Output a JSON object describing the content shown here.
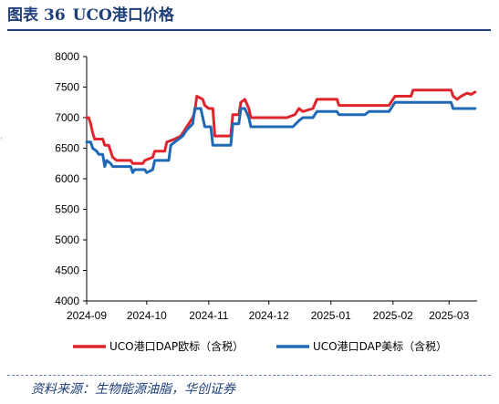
{
  "title": {
    "prefix": "图表",
    "number": "36",
    "text": "UCO港口价格"
  },
  "left_mark": "‘",
  "source": "资料来源：生物能源油脂，华创证券",
  "chart_data": {
    "type": "line",
    "ylim": [
      4000,
      8000
    ],
    "yticks": [
      4000,
      4500,
      5000,
      5500,
      6000,
      6500,
      7000,
      7500,
      8000
    ],
    "xlim": [
      "2024-09-01",
      "2025-03-15"
    ],
    "xticks": [
      "2024-09",
      "2024-10",
      "2024-11",
      "2024-12",
      "2025-01",
      "2025-02",
      "2025-03"
    ],
    "legend_position": "bottom",
    "series": [
      {
        "name": "UCO港口DAP欧标（含税）",
        "color": "#e0242c",
        "points": [
          [
            "2024-09-01",
            7000
          ],
          [
            "2024-09-02",
            7000
          ],
          [
            "2024-09-03",
            6900
          ],
          [
            "2024-09-04",
            6750
          ],
          [
            "2024-09-05",
            6650
          ],
          [
            "2024-09-09",
            6650
          ],
          [
            "2024-09-10",
            6550
          ],
          [
            "2024-09-12",
            6550
          ],
          [
            "2024-09-13",
            6450
          ],
          [
            "2024-09-14",
            6350
          ],
          [
            "2024-09-16",
            6300
          ],
          [
            "2024-09-23",
            6300
          ],
          [
            "2024-09-24",
            6250
          ],
          [
            "2024-09-29",
            6250
          ],
          [
            "2024-09-30",
            6300
          ],
          [
            "2024-10-04",
            6350
          ],
          [
            "2024-10-05",
            6450
          ],
          [
            "2024-10-10",
            6450
          ],
          [
            "2024-10-11",
            6600
          ],
          [
            "2024-10-15",
            6650
          ],
          [
            "2024-10-18",
            6700
          ],
          [
            "2024-10-21",
            6850
          ],
          [
            "2024-10-24",
            7000
          ],
          [
            "2024-10-25",
            7100
          ],
          [
            "2024-10-26",
            7350
          ],
          [
            "2024-10-29",
            7300
          ],
          [
            "2024-10-30",
            7200
          ],
          [
            "2024-11-01",
            7150
          ],
          [
            "2024-11-03",
            7150
          ],
          [
            "2024-11-04",
            6700
          ],
          [
            "2024-11-12",
            6700
          ],
          [
            "2024-11-13",
            7050
          ],
          [
            "2024-11-16",
            7050
          ],
          [
            "2024-11-17",
            7250
          ],
          [
            "2024-11-19",
            7300
          ],
          [
            "2024-11-21",
            7150
          ],
          [
            "2024-11-22",
            7000
          ],
          [
            "2024-12-10",
            7000
          ],
          [
            "2024-12-14",
            7050
          ],
          [
            "2024-12-16",
            7150
          ],
          [
            "2024-12-18",
            7100
          ],
          [
            "2024-12-23",
            7150
          ],
          [
            "2024-12-25",
            7300
          ],
          [
            "2025-01-04",
            7300
          ],
          [
            "2025-01-05",
            7200
          ],
          [
            "2025-01-30",
            7200
          ],
          [
            "2025-02-02",
            7350
          ],
          [
            "2025-02-10",
            7350
          ],
          [
            "2025-02-11",
            7450
          ],
          [
            "2025-03-02",
            7450
          ],
          [
            "2025-03-03",
            7350
          ],
          [
            "2025-03-05",
            7300
          ],
          [
            "2025-03-07",
            7350
          ],
          [
            "2025-03-10",
            7400
          ],
          [
            "2025-03-12",
            7380
          ],
          [
            "2025-03-14",
            7420
          ]
        ]
      },
      {
        "name": "UCO港口DAP美标（含税）",
        "color": "#1f68b5",
        "points": [
          [
            "2024-09-01",
            6600
          ],
          [
            "2024-09-03",
            6600
          ],
          [
            "2024-09-04",
            6500
          ],
          [
            "2024-09-06",
            6450
          ],
          [
            "2024-09-07",
            6400
          ],
          [
            "2024-09-09",
            6400
          ],
          [
            "2024-09-10",
            6200
          ],
          [
            "2024-09-11",
            6300
          ],
          [
            "2024-09-13",
            6250
          ],
          [
            "2024-09-14",
            6200
          ],
          [
            "2024-09-23",
            6200
          ],
          [
            "2024-09-24",
            6100
          ],
          [
            "2024-09-25",
            6150
          ],
          [
            "2024-09-30",
            6150
          ],
          [
            "2024-10-01",
            6100
          ],
          [
            "2024-10-04",
            6150
          ],
          [
            "2024-10-05",
            6300
          ],
          [
            "2024-10-12",
            6300
          ],
          [
            "2024-10-13",
            6550
          ],
          [
            "2024-10-15",
            6600
          ],
          [
            "2024-10-19",
            6700
          ],
          [
            "2024-10-21",
            6800
          ],
          [
            "2024-10-24",
            6900
          ],
          [
            "2024-10-25",
            7150
          ],
          [
            "2024-10-28",
            7150
          ],
          [
            "2024-10-29",
            7000
          ],
          [
            "2024-10-30",
            6850
          ],
          [
            "2024-11-01",
            6850
          ],
          [
            "2024-11-02",
            6850
          ],
          [
            "2024-11-03",
            6550
          ],
          [
            "2024-11-12",
            6550
          ],
          [
            "2024-11-13",
            6900
          ],
          [
            "2024-11-16",
            6900
          ],
          [
            "2024-11-17",
            7150
          ],
          [
            "2024-11-19",
            7150
          ],
          [
            "2024-11-21",
            7000
          ],
          [
            "2024-11-22",
            6850
          ],
          [
            "2024-12-13",
            6850
          ],
          [
            "2024-12-16",
            6950
          ],
          [
            "2024-12-18",
            7000
          ],
          [
            "2024-12-23",
            7000
          ],
          [
            "2024-12-25",
            7100
          ],
          [
            "2025-01-04",
            7100
          ],
          [
            "2025-01-05",
            7050
          ],
          [
            "2025-01-18",
            7050
          ],
          [
            "2025-01-20",
            7100
          ],
          [
            "2025-01-30",
            7100
          ],
          [
            "2025-02-02",
            7250
          ],
          [
            "2025-03-02",
            7250
          ],
          [
            "2025-03-03",
            7150
          ],
          [
            "2025-03-14",
            7150
          ]
        ]
      }
    ]
  }
}
